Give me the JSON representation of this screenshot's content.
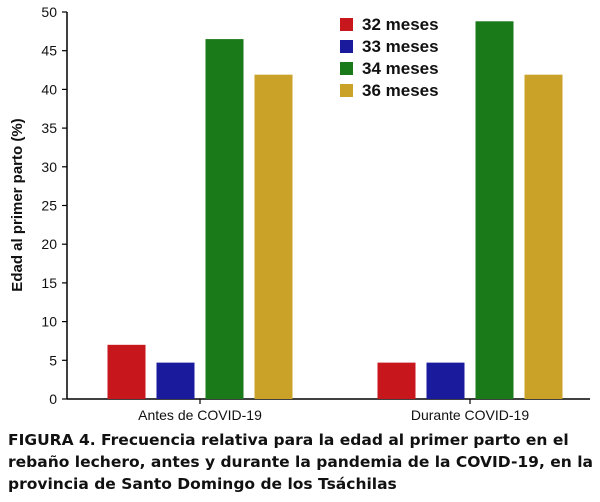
{
  "chart_data": {
    "type": "bar",
    "title": "",
    "xlabel": "",
    "ylabel": "Edad al primer parto (%)",
    "ylim": [
      0,
      50
    ],
    "yticks": [
      0,
      5,
      10,
      15,
      20,
      25,
      30,
      35,
      40,
      45,
      50
    ],
    "categories": [
      "Antes de COVID-19",
      "Durante COVID-19"
    ],
    "legend_position": "top-right",
    "grid": false,
    "series": [
      {
        "name": "32 meses",
        "color": "#c8161d",
        "values": [
          7.0,
          4.7
        ]
      },
      {
        "name": "33 meses",
        "color": "#1a1a9c",
        "values": [
          4.7,
          4.7
        ]
      },
      {
        "name": "34 meses",
        "color": "#1a7a1a",
        "values": [
          46.5,
          48.8
        ]
      },
      {
        "name": "36 meses",
        "color": "#c9a227",
        "values": [
          41.9,
          41.9
        ]
      }
    ]
  },
  "caption": "FIGURA 4. Frecuencia relativa para la edad al primer parto en el rebaño lechero, antes y durante la pandemia de la COVID-19, en la provincia de Santo Domingo de los Tsáchilas"
}
